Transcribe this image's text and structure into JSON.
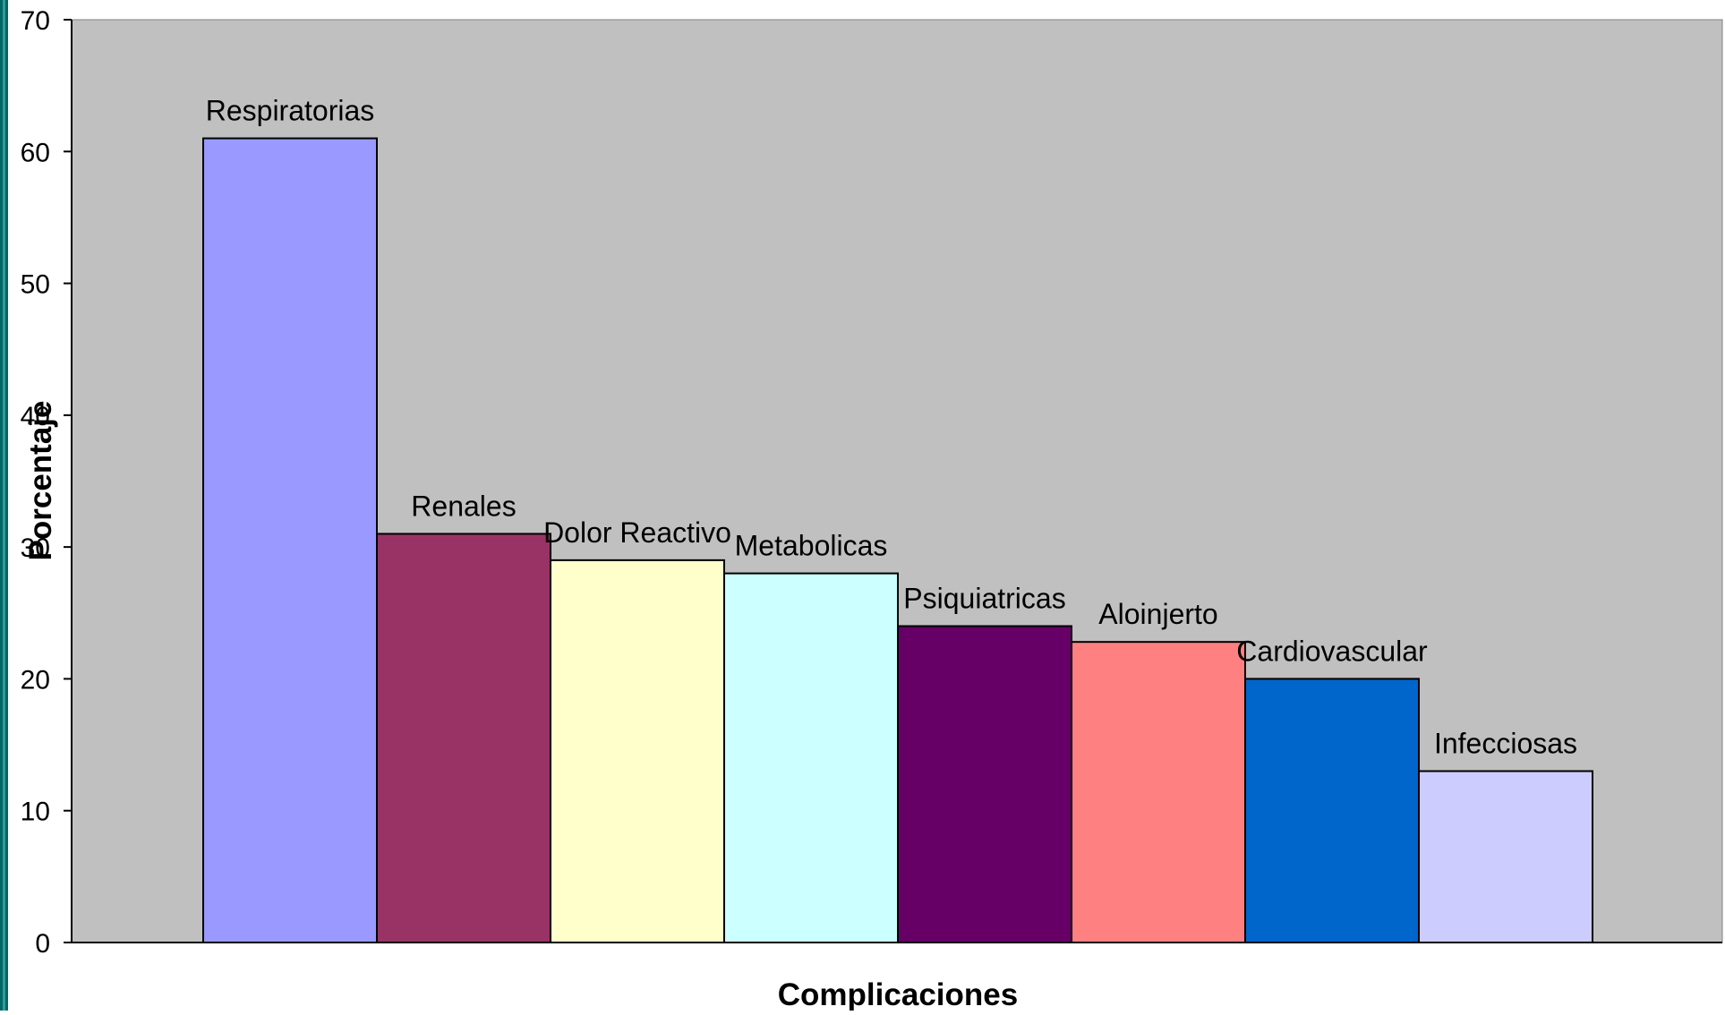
{
  "chart_data": {
    "type": "bar",
    "title": "",
    "xlabel": "Complicaciones",
    "ylabel": "Porcentaje",
    "ylim": [
      0,
      70
    ],
    "yticks": [
      0,
      10,
      20,
      30,
      40,
      50,
      60,
      70
    ],
    "grid": false,
    "legend": "none",
    "plot_background": "#C0C0C0",
    "frame_color": "#006666",
    "categories": [
      "Respiratorias",
      "Renales",
      "Dolor Reactivo",
      "Metabolicas",
      "Psiquiatricas",
      "Aloinjerto",
      "Cardiovascular",
      "Infecciosas"
    ],
    "values": [
      61,
      31,
      29,
      28,
      24,
      22.8,
      20,
      13
    ],
    "colors": [
      "#9999FF",
      "#993366",
      "#FFFFCC",
      "#CCFFFF",
      "#660066",
      "#FF8080",
      "#0066CC",
      "#CCCCFF"
    ]
  }
}
